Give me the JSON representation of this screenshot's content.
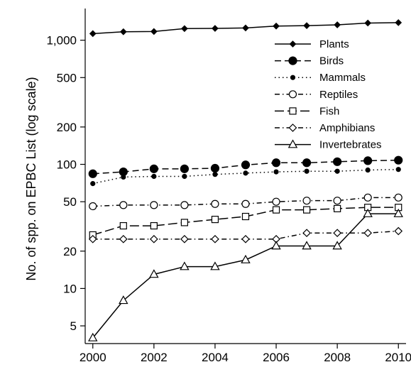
{
  "chart_data": {
    "type": "line",
    "title": "",
    "xlabel": "",
    "ylabel": "No. of spp. on EPBC List (log scale)",
    "yscale": "log",
    "xlim": [
      1999.75,
      2010.25
    ],
    "ylim": [
      3.6,
      1800
    ],
    "x_ticks": [
      2000,
      2002,
      2004,
      2006,
      2008,
      2010
    ],
    "y_ticks": [
      {
        "value": 5,
        "label": "5"
      },
      {
        "value": 10,
        "label": "10"
      },
      {
        "value": 20,
        "label": "20"
      },
      {
        "value": 50,
        "label": "50"
      },
      {
        "value": 100,
        "label": "100"
      },
      {
        "value": 200,
        "label": "200"
      },
      {
        "value": 500,
        "label": "500"
      },
      {
        "value": 1000,
        "label": "1,000"
      }
    ],
    "x": [
      2000,
      2001,
      2002,
      2003,
      2004,
      2005,
      2006,
      2007,
      2008,
      2009,
      2010
    ],
    "legend_position": "top-right",
    "grid": false,
    "series": [
      {
        "name": "Plants",
        "marker": "diamond-filled",
        "dash": "solid",
        "marker_size": 4,
        "values": [
          1130,
          1170,
          1175,
          1240,
          1245,
          1255,
          1300,
          1310,
          1330,
          1375,
          1385
        ]
      },
      {
        "name": "Birds",
        "marker": "circle-filled",
        "dash": "dashed",
        "marker_size": 5.5,
        "values": [
          84,
          87,
          92,
          92,
          93,
          99,
          103,
          103,
          105,
          107,
          108
        ]
      },
      {
        "name": "Mammals",
        "marker": "circle-filled",
        "dash": "dotted",
        "marker_size": 3,
        "values": [
          70,
          79,
          80,
          80,
          83,
          85,
          87,
          88,
          88,
          90,
          91
        ]
      },
      {
        "name": "Reptiles",
        "marker": "circle-open",
        "dash": "dashdot",
        "marker_size": 5,
        "values": [
          46,
          47,
          47,
          47,
          48,
          48,
          50,
          51,
          51,
          54,
          54
        ]
      },
      {
        "name": "Fish",
        "marker": "square-open",
        "dash": "longdash",
        "marker_size": 4.5,
        "values": [
          27,
          32,
          32,
          34,
          36,
          38,
          43,
          43,
          44,
          45,
          45
        ]
      },
      {
        "name": "Amphibians",
        "marker": "diamond-open",
        "dash": "dashdot",
        "marker_size": 5,
        "values": [
          25,
          25,
          25,
          25,
          25,
          25,
          25,
          28,
          28,
          28,
          29
        ]
      },
      {
        "name": "Invertebrates",
        "marker": "triangle-open",
        "dash": "solid",
        "marker_size": 6,
        "values": [
          4,
          8,
          13,
          15,
          15,
          17,
          22,
          22,
          22,
          40,
          40
        ]
      }
    ]
  }
}
